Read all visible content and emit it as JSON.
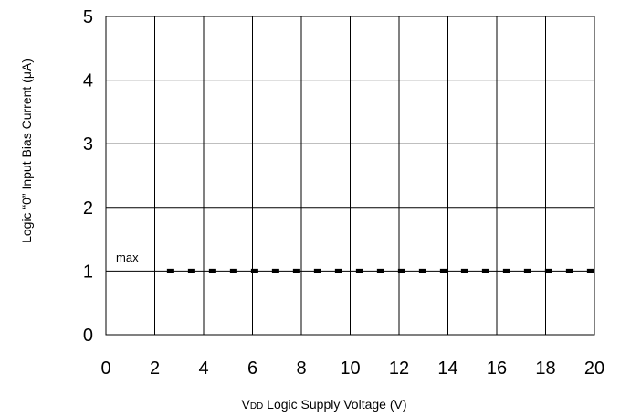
{
  "chart_data": {
    "type": "line",
    "title": "",
    "xlabel_prefix": "V",
    "xlabel_subscript": "DD",
    "xlabel_rest": " Logic Supply Voltage (V)",
    "ylabel": "Logic “0” Input Bias Current (μA)",
    "xlim": [
      0,
      20
    ],
    "ylim": [
      0,
      5
    ],
    "xticks": [
      0,
      2,
      4,
      6,
      8,
      10,
      12,
      14,
      16,
      18,
      20
    ],
    "yticks": [
      0,
      1,
      2,
      3,
      4,
      5
    ],
    "grid": true,
    "legend": "none",
    "series": [
      {
        "name": "max",
        "style": "dashed",
        "color": "#000000",
        "x": [
          2.5,
          20
        ],
        "y": [
          1,
          1
        ]
      }
    ],
    "annotations": [
      {
        "text": "max",
        "x": 0.3,
        "y": 1.15
      }
    ]
  }
}
